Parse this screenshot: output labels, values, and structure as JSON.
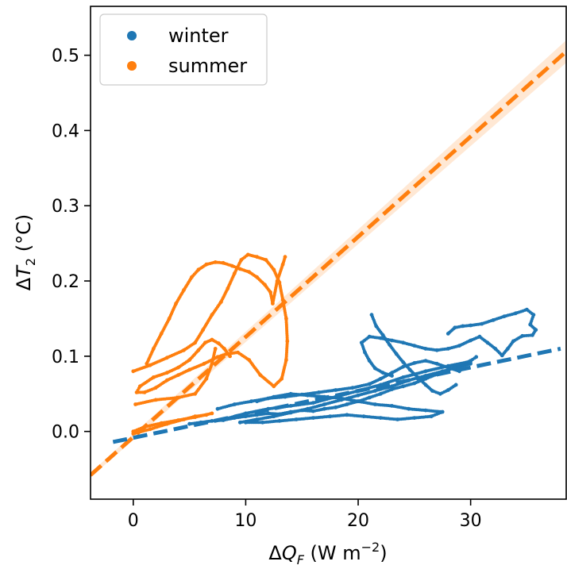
{
  "chart_data": {
    "type": "scatter",
    "xlabel": "ΔQ_F (W m⁻²)",
    "xlabel_parts": {
      "delta": "Δ",
      "var": "Q",
      "sub": "F",
      "unit_open": " (W m",
      "sup": "−2",
      "unit_close": ")"
    },
    "ylabel": "ΔT_2 (°C)",
    "ylabel_parts": {
      "delta": "Δ",
      "var": "T",
      "sub": "2",
      "unit": " (°C)"
    },
    "xlim": [
      -3.8,
      38.5
    ],
    "ylim": [
      -0.09,
      0.565
    ],
    "x_ticks": [
      0,
      10,
      20,
      30
    ],
    "x_tick_labels": [
      "0",
      "10",
      "20",
      "30"
    ],
    "y_ticks": [
      0.0,
      0.1,
      0.2,
      0.3,
      0.4,
      0.5
    ],
    "y_tick_labels": [
      "0.0",
      "0.1",
      "0.2",
      "0.3",
      "0.4",
      "0.5"
    ],
    "legend": {
      "position": "top-left",
      "entries": [
        {
          "label": "winter",
          "color": "#1f77b4"
        },
        {
          "label": "summer",
          "color": "#ff7f0e"
        }
      ]
    },
    "series": [
      {
        "name": "summer",
        "color": "#ff7f0e",
        "points": [
          [
            0.0,
            -0.003
          ],
          [
            1.5,
            0.003
          ],
          [
            3.0,
            0.01
          ],
          [
            4.5,
            0.016
          ],
          [
            5.5,
            0.02
          ],
          [
            6.5,
            0.022
          ],
          [
            0.0,
            0.0
          ],
          [
            1.0,
            0.006
          ],
          [
            2.5,
            0.011
          ],
          [
            4.0,
            0.015
          ],
          [
            5.5,
            0.019
          ],
          [
            7.0,
            0.024
          ],
          [
            0.2,
            0.036
          ],
          [
            2.0,
            0.042
          ],
          [
            4.0,
            0.045
          ],
          [
            5.5,
            0.05
          ],
          [
            6.5,
            0.07
          ],
          [
            7.0,
            0.09
          ],
          [
            7.3,
            0.11
          ],
          [
            0.0,
            0.08
          ],
          [
            1.5,
            0.088
          ],
          [
            3.0,
            0.098
          ],
          [
            4.5,
            0.108
          ],
          [
            5.5,
            0.118
          ],
          [
            6.2,
            0.135
          ],
          [
            7.0,
            0.155
          ],
          [
            7.8,
            0.172
          ],
          [
            8.4,
            0.19
          ],
          [
            9.0,
            0.21
          ],
          [
            9.6,
            0.228
          ],
          [
            10.2,
            0.235
          ],
          [
            11.0,
            0.232
          ],
          [
            11.8,
            0.228
          ],
          [
            12.5,
            0.215
          ],
          [
            13.0,
            0.198
          ],
          [
            13.3,
            0.175
          ],
          [
            13.6,
            0.15
          ],
          [
            13.7,
            0.12
          ],
          [
            13.6,
            0.095
          ],
          [
            13.2,
            0.07
          ],
          [
            12.5,
            0.06
          ],
          [
            11.3,
            0.075
          ],
          [
            10.3,
            0.095
          ],
          [
            9.3,
            0.105
          ],
          [
            8.3,
            0.103
          ],
          [
            7.5,
            0.099
          ],
          [
            6.3,
            0.09
          ],
          [
            5.0,
            0.082
          ],
          [
            4.0,
            0.075
          ],
          [
            3.0,
            0.068
          ],
          [
            2.0,
            0.058
          ],
          [
            1.0,
            0.052
          ],
          [
            0.3,
            0.052
          ],
          [
            0.6,
            0.06
          ],
          [
            1.8,
            0.072
          ],
          [
            3.0,
            0.078
          ],
          [
            4.0,
            0.085
          ],
          [
            5.0,
            0.095
          ],
          [
            5.8,
            0.108
          ],
          [
            6.4,
            0.118
          ],
          [
            7.0,
            0.122
          ],
          [
            7.6,
            0.117
          ],
          [
            8.1,
            0.11
          ],
          [
            8.6,
            0.1
          ],
          [
            1.2,
            0.09
          ],
          [
            1.8,
            0.11
          ],
          [
            2.5,
            0.13
          ],
          [
            3.2,
            0.15
          ],
          [
            3.8,
            0.17
          ],
          [
            4.5,
            0.188
          ],
          [
            5.2,
            0.205
          ],
          [
            5.8,
            0.215
          ],
          [
            6.5,
            0.222
          ],
          [
            7.3,
            0.225
          ],
          [
            8.0,
            0.224
          ],
          [
            8.8,
            0.22
          ],
          [
            9.5,
            0.216
          ],
          [
            10.3,
            0.212
          ],
          [
            11.0,
            0.205
          ],
          [
            11.7,
            0.195
          ],
          [
            12.2,
            0.185
          ],
          [
            12.4,
            0.17
          ],
          [
            12.8,
            0.2
          ],
          [
            13.3,
            0.222
          ],
          [
            13.5,
            0.232
          ]
        ]
      },
      {
        "name": "winter",
        "color": "#1f77b4",
        "points": [
          [
            5.0,
            0.01
          ],
          [
            6.0,
            0.012
          ],
          [
            7.0,
            0.014
          ],
          [
            8.0,
            0.015
          ],
          [
            9.0,
            0.018
          ],
          [
            10.0,
            0.02
          ],
          [
            11.0,
            0.022
          ],
          [
            12.0,
            0.024
          ],
          [
            13.0,
            0.023
          ],
          [
            14.0,
            0.026
          ],
          [
            15.0,
            0.028
          ],
          [
            16.0,
            0.027
          ],
          [
            17.0,
            0.03
          ],
          [
            18.0,
            0.032
          ],
          [
            19.0,
            0.036
          ],
          [
            20.0,
            0.04
          ],
          [
            21.0,
            0.045
          ],
          [
            22.0,
            0.05
          ],
          [
            23.0,
            0.056
          ],
          [
            24.0,
            0.06
          ],
          [
            25.0,
            0.064
          ],
          [
            26.0,
            0.07
          ],
          [
            27.0,
            0.076
          ],
          [
            28.0,
            0.082
          ],
          [
            29.0,
            0.088
          ],
          [
            30.0,
            0.094
          ],
          [
            30.5,
            0.099
          ],
          [
            7.5,
            0.03
          ],
          [
            9.0,
            0.036
          ],
          [
            10.5,
            0.04
          ],
          [
            12.0,
            0.044
          ],
          [
            13.5,
            0.046
          ],
          [
            15.0,
            0.049
          ],
          [
            16.5,
            0.052
          ],
          [
            18.0,
            0.055
          ],
          [
            19.5,
            0.058
          ],
          [
            21.0,
            0.063
          ],
          [
            22.0,
            0.07
          ],
          [
            23.0,
            0.078
          ],
          [
            24.0,
            0.086
          ],
          [
            25.0,
            0.091
          ],
          [
            26.0,
            0.094
          ],
          [
            27.0,
            0.09
          ],
          [
            28.0,
            0.085
          ],
          [
            29.0,
            0.08
          ],
          [
            9.5,
            0.012
          ],
          [
            11.0,
            0.016
          ],
          [
            12.5,
            0.02
          ],
          [
            14.0,
            0.025
          ],
          [
            15.5,
            0.03
          ],
          [
            17.0,
            0.036
          ],
          [
            18.5,
            0.042
          ],
          [
            20.0,
            0.048
          ],
          [
            21.5,
            0.054
          ],
          [
            23.0,
            0.06
          ],
          [
            24.5,
            0.068
          ],
          [
            26.0,
            0.074
          ],
          [
            27.5,
            0.08
          ],
          [
            29.0,
            0.086
          ],
          [
            30.0,
            0.09
          ],
          [
            21.2,
            0.155
          ],
          [
            21.6,
            0.14
          ],
          [
            22.2,
            0.128
          ],
          [
            22.8,
            0.115
          ],
          [
            23.4,
            0.103
          ],
          [
            24.0,
            0.092
          ],
          [
            24.6,
            0.082
          ],
          [
            25.3,
            0.072
          ],
          [
            26.0,
            0.062
          ],
          [
            26.6,
            0.054
          ],
          [
            27.3,
            0.05
          ],
          [
            28.0,
            0.055
          ],
          [
            28.7,
            0.062
          ],
          [
            28.0,
            0.13
          ],
          [
            28.6,
            0.138
          ],
          [
            29.3,
            0.14
          ],
          [
            30.0,
            0.141
          ],
          [
            31.0,
            0.143
          ],
          [
            32.0,
            0.148
          ],
          [
            33.0,
            0.153
          ],
          [
            34.0,
            0.157
          ],
          [
            35.0,
            0.162
          ],
          [
            35.6,
            0.155
          ],
          [
            35.3,
            0.142
          ],
          [
            35.8,
            0.135
          ],
          [
            35.5,
            0.128
          ],
          [
            34.6,
            0.127
          ],
          [
            33.8,
            0.12
          ],
          [
            33.3,
            0.11
          ],
          [
            32.8,
            0.101
          ],
          [
            32.2,
            0.11
          ],
          [
            31.5,
            0.118
          ],
          [
            30.8,
            0.126
          ],
          [
            30.0,
            0.121
          ],
          [
            29.0,
            0.114
          ],
          [
            28.0,
            0.11
          ],
          [
            27.0,
            0.108
          ],
          [
            26.0,
            0.11
          ],
          [
            25.0,
            0.114
          ],
          [
            24.0,
            0.118
          ],
          [
            23.0,
            0.121
          ],
          [
            22.0,
            0.124
          ],
          [
            21.0,
            0.126
          ],
          [
            20.3,
            0.118
          ],
          [
            20.6,
            0.105
          ],
          [
            21.0,
            0.094
          ],
          [
            21.5,
            0.084
          ],
          [
            22.2,
            0.078
          ],
          [
            23.0,
            0.074
          ],
          [
            8.0,
            0.016
          ],
          [
            10.0,
            0.024
          ],
          [
            12.0,
            0.03
          ],
          [
            14.0,
            0.034
          ],
          [
            16.0,
            0.038
          ],
          [
            18.0,
            0.046
          ],
          [
            20.0,
            0.054
          ],
          [
            22.0,
            0.062
          ],
          [
            24.0,
            0.072
          ],
          [
            26.0,
            0.08
          ],
          [
            28.0,
            0.087
          ],
          [
            30.0,
            0.093
          ],
          [
            11.0,
            0.04
          ],
          [
            12.5,
            0.046
          ],
          [
            14.0,
            0.05
          ],
          [
            15.5,
            0.048
          ],
          [
            17.0,
            0.046
          ],
          [
            18.5,
            0.044
          ],
          [
            20.0,
            0.04
          ],
          [
            21.5,
            0.036
          ],
          [
            23.0,
            0.034
          ],
          [
            24.5,
            0.03
          ],
          [
            26.0,
            0.028
          ],
          [
            27.5,
            0.026
          ],
          [
            26.5,
            0.02
          ],
          [
            25.0,
            0.018
          ],
          [
            23.5,
            0.016
          ],
          [
            22.0,
            0.018
          ],
          [
            20.5,
            0.02
          ],
          [
            19.0,
            0.022
          ],
          [
            17.5,
            0.02
          ],
          [
            16.0,
            0.018
          ],
          [
            14.5,
            0.016
          ],
          [
            13.0,
            0.014
          ],
          [
            11.5,
            0.012
          ],
          [
            10.0,
            0.012
          ]
        ]
      }
    ],
    "fit_lines": [
      {
        "name": "summer",
        "color": "#ff7f0e",
        "x": [
          -3.8,
          38.5
        ],
        "y": [
          -0.058,
          0.505
        ],
        "band": 0.015
      },
      {
        "name": "winter",
        "color": "#1f77b4",
        "x": [
          -1.8,
          38.0
        ],
        "y": [
          -0.014,
          0.11
        ],
        "band": 0.0
      }
    ]
  }
}
